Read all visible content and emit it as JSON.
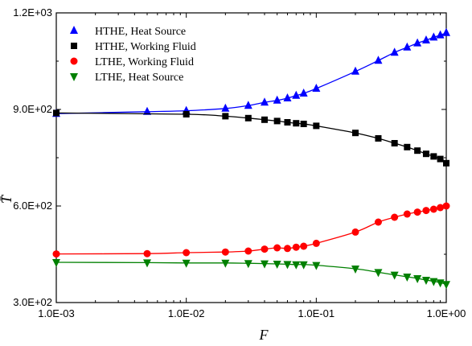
{
  "chart_data": {
    "type": "line",
    "xlabel": "F",
    "ylabel": "T̄",
    "x_scale": "log",
    "xlim": [
      0.001,
      1.0
    ],
    "ylim": [
      300,
      1200
    ],
    "x_ticks": [
      {
        "value": 0.001,
        "label": "1.0E-03"
      },
      {
        "value": 0.01,
        "label": "1.0E-02"
      },
      {
        "value": 0.1,
        "label": "1.0E-01"
      },
      {
        "value": 1.0,
        "label": "1.0E+00"
      }
    ],
    "y_ticks": [
      {
        "value": 300,
        "label": "3.0E+02"
      },
      {
        "value": 600,
        "label": "6.0E+02"
      },
      {
        "value": 900,
        "label": "9.0E+02"
      },
      {
        "value": 1200,
        "label": "1.2E+03"
      }
    ],
    "legend_position": "top-left",
    "grid": false,
    "series": [
      {
        "name": "HTHE,  Heat Source",
        "color": "#0000ff",
        "marker": "triangle-up",
        "x": [
          0.001,
          0.005,
          0.01,
          0.02,
          0.03,
          0.04,
          0.05,
          0.06,
          0.07,
          0.08,
          0.1,
          0.2,
          0.3,
          0.4,
          0.5,
          0.6,
          0.7,
          0.8,
          0.9,
          1.0
        ],
        "y": [
          887,
          893,
          896,
          903,
          912,
          922,
          928,
          935,
          943,
          950,
          965,
          1018,
          1052,
          1077,
          1093,
          1106,
          1115,
          1124,
          1131,
          1138
        ]
      },
      {
        "name": "HTHE, Working Fluid",
        "color": "#000000",
        "marker": "square",
        "x": [
          0.001,
          0.01,
          0.02,
          0.03,
          0.04,
          0.05,
          0.06,
          0.07,
          0.08,
          0.1,
          0.2,
          0.3,
          0.4,
          0.5,
          0.6,
          0.7,
          0.8,
          0.9,
          1.0
        ],
        "y": [
          889,
          885,
          879,
          873,
          868,
          864,
          860,
          857,
          855,
          849,
          827,
          810,
          795,
          783,
          772,
          762,
          754,
          746,
          733
        ]
      },
      {
        "name": "LTHE, Working Fluid",
        "color": "#ff0000",
        "marker": "circle",
        "x": [
          0.001,
          0.005,
          0.01,
          0.02,
          0.03,
          0.04,
          0.05,
          0.06,
          0.07,
          0.08,
          0.1,
          0.2,
          0.3,
          0.4,
          0.5,
          0.6,
          0.7,
          0.8,
          0.9,
          1.0
        ],
        "y": [
          451,
          452,
          455,
          457,
          460,
          466,
          470,
          468,
          472,
          475,
          484,
          519,
          550,
          565,
          575,
          581,
          586,
          590,
          595,
          600
        ]
      },
      {
        "name": "LTHE, Heat Source",
        "color": "#008000",
        "marker": "triangle-down",
        "x": [
          0.001,
          0.005,
          0.01,
          0.02,
          0.03,
          0.04,
          0.05,
          0.06,
          0.07,
          0.08,
          0.1,
          0.2,
          0.3,
          0.4,
          0.5,
          0.6,
          0.7,
          0.8,
          0.9,
          1.0
        ],
        "y": [
          425,
          424,
          423,
          423,
          422,
          421,
          420,
          419,
          418,
          418,
          416,
          405,
          394,
          386,
          380,
          375,
          370,
          366,
          362,
          357
        ]
      }
    ]
  }
}
